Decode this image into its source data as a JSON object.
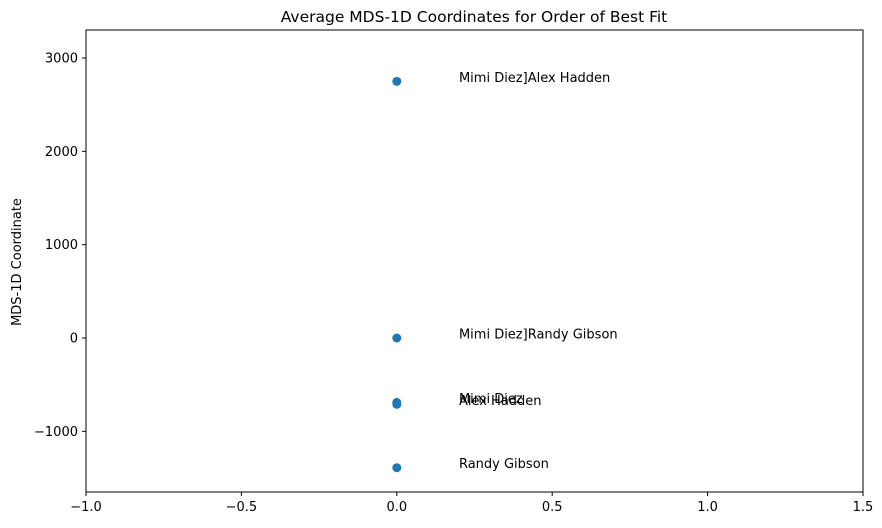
{
  "chart_data": {
    "type": "scatter",
    "title": "Average MDS-1D Coordinates for Order of Best Fit",
    "xlabel": "",
    "ylabel": "MDS-1D Coordinate",
    "xlim": [
      -1.0,
      1.5
    ],
    "ylim": [
      -1650,
      3300
    ],
    "x_ticks": [
      {
        "value": -1.0,
        "label": "−1.0"
      },
      {
        "value": -0.5,
        "label": "−0.5"
      },
      {
        "value": 0.0,
        "label": "0.0"
      },
      {
        "value": 0.5,
        "label": "0.5"
      },
      {
        "value": 1.0,
        "label": "1.0"
      },
      {
        "value": 1.5,
        "label": "1.5"
      }
    ],
    "y_ticks": [
      {
        "value": -1000,
        "label": "−1000"
      },
      {
        "value": 0,
        "label": "0"
      },
      {
        "value": 1000,
        "label": "1000"
      },
      {
        "value": 2000,
        "label": "2000"
      },
      {
        "value": 3000,
        "label": "3000"
      }
    ],
    "grid": false,
    "marker_color": "#1f77b4",
    "points": [
      {
        "x": 0,
        "y": 2750,
        "label": "Mimi Diez]Alex Hadden"
      },
      {
        "x": 0,
        "y": 0,
        "label": "Mimi Diez]Randy Gibson"
      },
      {
        "x": 0,
        "y": -690,
        "label": "Mimi Diez"
      },
      {
        "x": 0,
        "y": -710,
        "label": "Alex Hadden"
      },
      {
        "x": 0,
        "y": -1390,
        "label": "Randy Gibson"
      }
    ],
    "label_x_offset": 0.2
  }
}
